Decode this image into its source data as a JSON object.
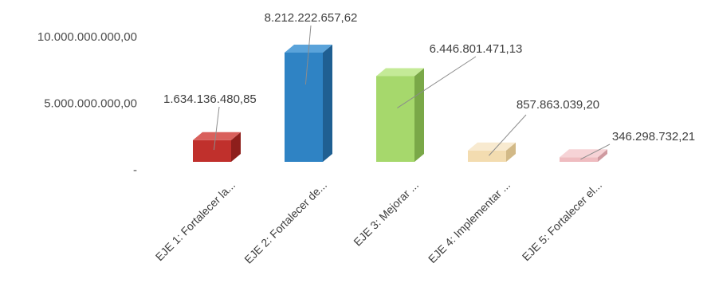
{
  "chart_data": {
    "type": "bar",
    "style": "3d-column",
    "categories": [
      "EJE 1: Fortalecer la...",
      "EJE 2: Fortalecer de...",
      "EJE 3: Mejorar ...",
      "EJE 4: Implementar ...",
      "EJE 5: Fortalecer el..."
    ],
    "values": [
      1634136480.85,
      8212222657.62,
      6446801471.13,
      857863039.2,
      346298732.21
    ],
    "data_labels": [
      "1.634.136.480,85",
      "8.212.222.657,62",
      "6.446.801.471,13",
      "857.863.039,20",
      "346.298.732,21"
    ],
    "y_ticks": [
      {
        "value": 0,
        "label": "-"
      },
      {
        "value": 5000000000,
        "label": "5.000.000.000,00"
      },
      {
        "value": 10000000000,
        "label": "10.000.000.000,00"
      }
    ],
    "ylim": [
      0,
      10000000000
    ],
    "grid": false,
    "legend": "none",
    "colors": {
      "bars": [
        "#c0302c",
        "#2f83c4",
        "#a6d86c",
        "#f3dcb0",
        "#efbcc0"
      ],
      "sides": [
        "#8e1f1c",
        "#1f5f92",
        "#7aa848",
        "#d2b987",
        "#cf9aa0"
      ],
      "tops": [
        "#d9605c",
        "#5aa3da",
        "#c4ea97",
        "#f8ead0",
        "#f6d3d6"
      ]
    }
  }
}
